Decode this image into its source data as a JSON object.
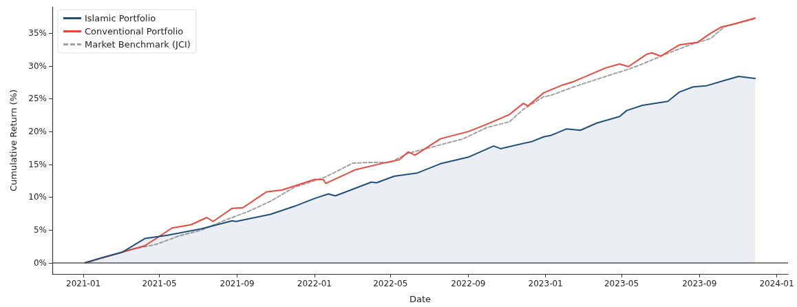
{
  "chart_data": {
    "type": "line",
    "xlabel": "Date",
    "ylabel": "Cumulative Return (%)",
    "xlim": [
      "2020-11-13",
      "2024-01-19"
    ],
    "xticks": [
      "2021-01",
      "2021-05",
      "2021-09",
      "2022-01",
      "2022-05",
      "2022-09",
      "2023-01",
      "2023-05",
      "2023-09",
      "2024-01"
    ],
    "ylim": [
      -1.7,
      39
    ],
    "yticks": [
      {
        "value": 0,
        "label": "0%"
      },
      {
        "value": 5,
        "label": "5%"
      },
      {
        "value": 10,
        "label": "10%"
      },
      {
        "value": 15,
        "label": "15%"
      },
      {
        "value": 20,
        "label": "20%"
      },
      {
        "value": 25,
        "label": "25%"
      },
      {
        "value": 30,
        "label": "30%"
      },
      {
        "value": 35,
        "label": "35%"
      }
    ],
    "grid": false,
    "legend": "top left",
    "marker": "none",
    "ref_lines": [
      {
        "axis": "y",
        "value": 0,
        "color": "#555555"
      }
    ],
    "series": [
      {
        "name": "Islamic Portfolio",
        "type": "area",
        "color": "#1f4e79",
        "line_style": "solid",
        "x": [
          "2021-01-04",
          "2021-01-31",
          "2021-03-03",
          "2021-04-08",
          "2021-05-14",
          "2021-07-07",
          "2021-08-24",
          "2021-08-30",
          "2021-10-24",
          "2021-11-30",
          "2022-01-01",
          "2022-01-23",
          "2022-02-03",
          "2022-04-01",
          "2022-04-09",
          "2022-05-07",
          "2022-06-13",
          "2022-07-19",
          "2022-09-01",
          "2022-10-11",
          "2022-10-22",
          "2022-12-11",
          "2022-12-29",
          "2023-01-09",
          "2023-02-03",
          "2023-02-25",
          "2023-03-23",
          "2023-04-28",
          "2023-05-09",
          "2023-06-03",
          "2023-07-13",
          "2023-07-31",
          "2023-08-22",
          "2023-09-13",
          "2023-10-11",
          "2023-11-02",
          "2023-11-28"
        ],
        "values": [
          0,
          0.8,
          1.6,
          3.7,
          4.2,
          5.2,
          6.4,
          6.3,
          7.4,
          8.6,
          9.8,
          10.5,
          10.2,
          12.3,
          12.2,
          13.2,
          13.7,
          15.1,
          16.1,
          17.8,
          17.4,
          18.5,
          19.2,
          19.4,
          20.4,
          20.2,
          21.3,
          22.3,
          23.2,
          24.0,
          24.6,
          26.0,
          26.8,
          27.0,
          27.8,
          28.4,
          28.1
        ]
      },
      {
        "name": "Conventional Portfolio",
        "color": "#e8483b",
        "line_style": "solid",
        "x": [
          "2021-01-04",
          "2021-02-05",
          "2021-04-08",
          "2021-04-26",
          "2021-05-21",
          "2021-06-20",
          "2021-07-15",
          "2021-07-25",
          "2021-08-24",
          "2021-09-10",
          "2021-10-17",
          "2021-11-11",
          "2022-01-01",
          "2022-01-15",
          "2022-01-19",
          "2022-03-07",
          "2022-04-20",
          "2022-05-15",
          "2022-05-29",
          "2022-06-09",
          "2022-07-19",
          "2022-09-01",
          "2022-09-30",
          "2022-11-05",
          "2022-11-27",
          "2022-12-04",
          "2022-12-29",
          "2023-01-28",
          "2023-02-14",
          "2023-04-06",
          "2023-04-28",
          "2023-05-12",
          "2023-06-10",
          "2023-06-18",
          "2023-07-02",
          "2023-07-31",
          "2023-08-29",
          "2023-09-19",
          "2023-10-05",
          "2023-10-26",
          "2023-11-28"
        ],
        "values": [
          0,
          0.9,
          2.6,
          3.7,
          5.3,
          5.8,
          6.9,
          6.3,
          8.3,
          8.4,
          10.8,
          11.1,
          12.7,
          12.7,
          12.1,
          14.2,
          15.2,
          15.7,
          16.9,
          16.4,
          18.9,
          20.0,
          21.1,
          22.6,
          24.3,
          23.9,
          25.9,
          27.1,
          27.6,
          29.7,
          30.3,
          29.9,
          31.8,
          32.0,
          31.5,
          33.2,
          33.6,
          35.0,
          35.9,
          36.4,
          37.3
        ]
      },
      {
        "name": "Market Benchmark (JCI)",
        "color": "#a0a0a0",
        "line_style": "dashed",
        "x": [
          "2021-01-04",
          "2021-03-20",
          "2021-04-26",
          "2021-06-01",
          "2021-07-07",
          "2021-08-13",
          "2021-09-18",
          "2021-10-24",
          "2021-11-30",
          "2022-01-01",
          "2022-01-19",
          "2022-03-03",
          "2022-04-01",
          "2022-05-01",
          "2022-05-29",
          "2022-07-12",
          "2022-08-24",
          "2022-09-30",
          "2022-11-05",
          "2022-11-27",
          "2022-12-29",
          "2023-01-09",
          "2023-02-14",
          "2023-04-09",
          "2023-05-12",
          "2023-06-03",
          "2023-07-10",
          "2023-08-14",
          "2023-09-19",
          "2023-10-11",
          "2023-11-28"
        ],
        "values": [
          0,
          2.1,
          2.8,
          4.1,
          5.0,
          6.5,
          7.8,
          9.4,
          11.5,
          12.5,
          13.1,
          15.2,
          15.3,
          15.3,
          16.7,
          17.8,
          18.9,
          20.6,
          21.5,
          23.4,
          25.3,
          25.5,
          26.8,
          28.5,
          29.5,
          30.3,
          31.8,
          33.1,
          34.2,
          36.0,
          37.2
        ]
      }
    ]
  }
}
